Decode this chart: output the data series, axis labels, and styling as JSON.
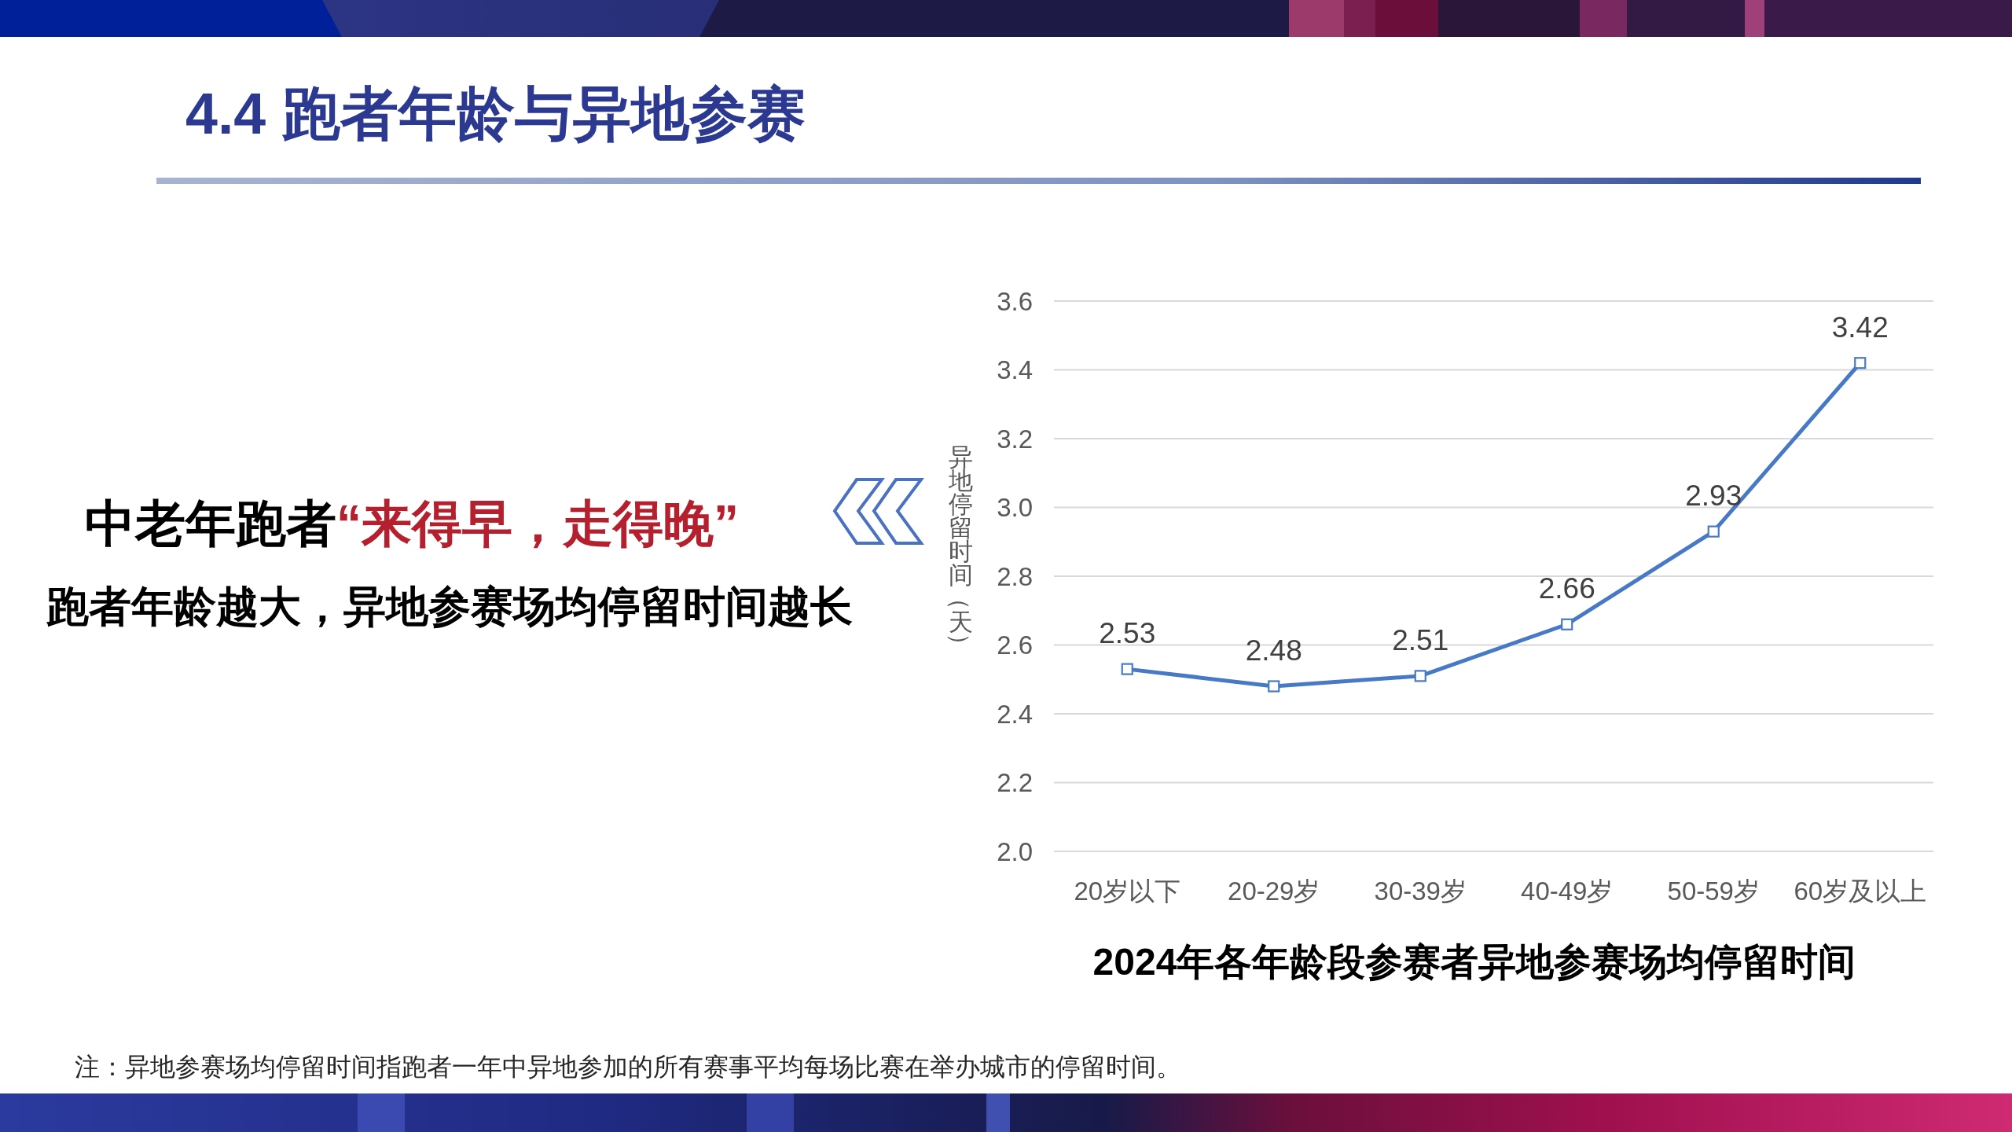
{
  "chart_data": {
    "type": "line",
    "title": "4.4 跑者年龄与异地参赛",
    "subtitle": "2024年各年龄段参赛者异地参赛场均停留时间",
    "ylabel": "异地停留时间（天）",
    "categories": [
      "20岁以下",
      "20-29岁",
      "30-39岁",
      "40-49岁",
      "50-59岁",
      "60岁及以上"
    ],
    "series": [
      {
        "color": "#4779c4",
        "values": [
          2.53,
          2.48,
          2.51,
          2.66,
          2.93,
          3.42
        ]
      }
    ],
    "ylim": [
      2.0,
      3.6
    ],
    "yticks": [
      {
        "value": 2,
        "label": "2.0"
      },
      2.2,
      2.4,
      2.6,
      2.8,
      {
        "value": 3,
        "label": "3.0"
      },
      3.2,
      3.4,
      3.6
    ],
    "grid": "y",
    "marker": "square",
    "line_style": "solid",
    "data_labels": true,
    "annotations": [
      "中老年跑者",
      "“来得早，走得晚”",
      "跑者年龄越大，异地参赛场均停留时间越长",
      "注：异地参赛场均停留时间指跑者一年中异地参加的所有赛事平均每场比赛在举办城市的停留时间。"
    ]
  }
}
